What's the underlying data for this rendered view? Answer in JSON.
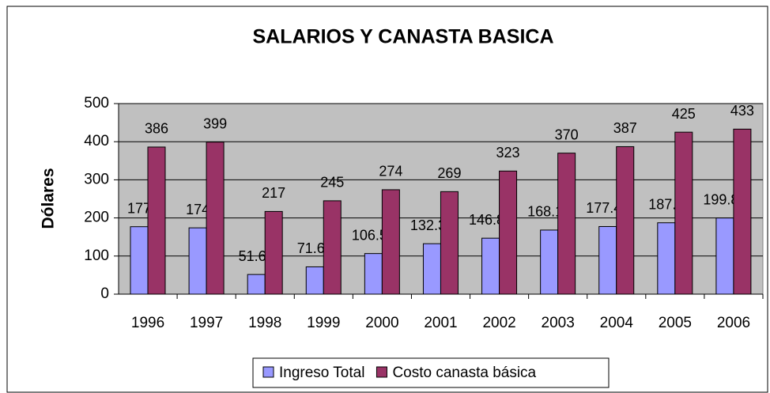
{
  "chart_data": {
    "type": "bar",
    "title": "SALARIOS Y CANASTA BASICA",
    "y_label": "Dólares",
    "categories": [
      "1996",
      "1997",
      "1998",
      "1999",
      "2000",
      "2001",
      "2002",
      "2003",
      "2004",
      "2005",
      "2006"
    ],
    "series": [
      {
        "name": "Ingreso Total",
        "color": "#9999ff",
        "values": [
          177,
          174,
          51.62,
          71.64,
          106.55,
          132.39,
          146.89,
          168.19,
          177.42,
          187.3,
          199.85
        ]
      },
      {
        "name": "Costo canasta básica",
        "color": "#993366",
        "values": [
          386,
          399,
          217,
          245,
          274,
          269,
          323,
          370,
          387,
          425,
          433
        ]
      }
    ],
    "ylim": [
      0,
      500
    ],
    "yticks": [
      0,
      100,
      200,
      300,
      400,
      500
    ],
    "grid": true,
    "legend": "bottom"
  }
}
